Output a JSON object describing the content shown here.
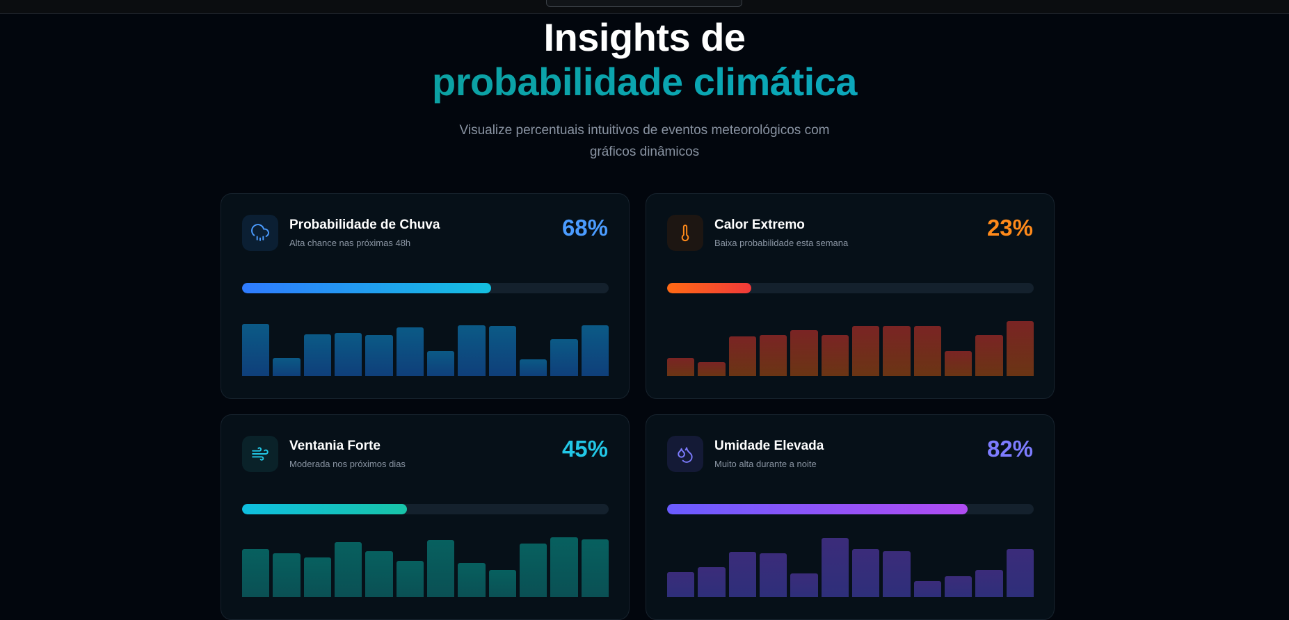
{
  "header": {
    "title_line1": "Insights de",
    "title_line2": "probabilidade climática",
    "subtitle": "Visualize percentuais intuitivos de eventos meteorológicos com gráficos dinâmicos"
  },
  "colors": {
    "rain": "#4b9cff",
    "heat": "#ff8a1a",
    "wind": "#22c7e6",
    "humidity": "#7d7cff"
  },
  "cards": [
    {
      "icon": "cloud-rain-icon",
      "title": "Probabilidade de Chuva",
      "subtitle": "Alta chance nas próximas 48h",
      "percent_label": "68%",
      "percent": 68,
      "bars": [
        52,
        18,
        42,
        43,
        41,
        49,
        25,
        51,
        50,
        17,
        37,
        51
      ]
    },
    {
      "icon": "thermometer-icon",
      "title": "Calor Extremo",
      "subtitle": "Baixa probabilidade esta semana",
      "percent_label": "23%",
      "percent": 23,
      "bars": [
        18,
        14,
        40,
        41,
        46,
        41,
        50,
        50,
        50,
        25,
        41,
        55
      ]
    },
    {
      "icon": "wind-icon",
      "title": "Ventania Forte",
      "subtitle": "Moderada nos próximos dias",
      "percent_label": "45%",
      "percent": 45,
      "bars": [
        48,
        44,
        40,
        55,
        46,
        36,
        57,
        34,
        27,
        54,
        60,
        58
      ]
    },
    {
      "icon": "droplets-icon",
      "title": "Umidade Elevada",
      "subtitle": "Muito alta durante a noite",
      "percent_label": "82%",
      "percent": 82,
      "bars": [
        25,
        30,
        45,
        44,
        24,
        59,
        48,
        46,
        16,
        21,
        27,
        48
      ]
    }
  ]
}
